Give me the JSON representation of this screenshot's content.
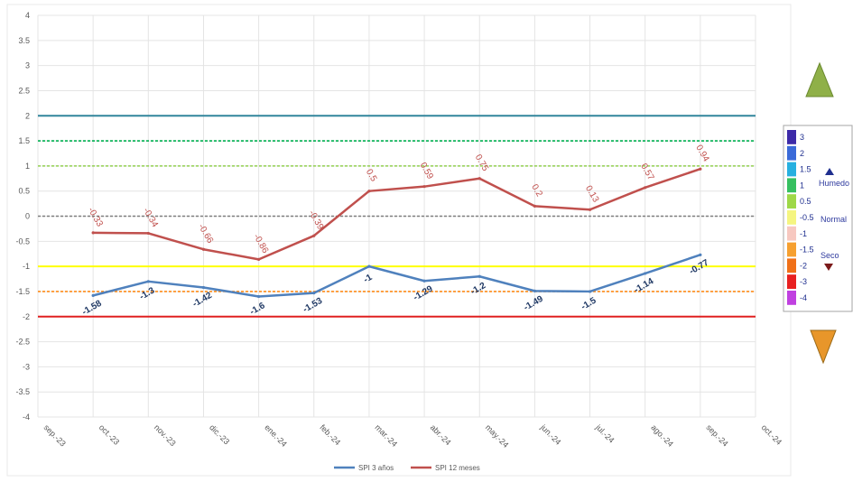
{
  "chart_data": {
    "type": "line",
    "x": [
      "sep.-23",
      "oct.-23",
      "nov.-23",
      "dic.-23",
      "ene.-24",
      "feb.-24",
      "mar.-24",
      "abr.-24",
      "may.-24",
      "jun.-24",
      "jul.-24",
      "ago.-24",
      "sep.-24",
      "oct.-24"
    ],
    "ylim": [
      -4,
      4
    ],
    "yticks": [
      4,
      3.5,
      3,
      2.5,
      2,
      1.5,
      1,
      0.5,
      0,
      -0.5,
      -1,
      -1.5,
      -2,
      -2.5,
      -3,
      -3.5,
      -4
    ],
    "grid": true,
    "legend": "bottom",
    "series": [
      {
        "name": "SPI 3 años",
        "color": "#4f81bd",
        "values": [
          null,
          -1.58,
          -1.3,
          -1.42,
          -1.6,
          -1.53,
          -1,
          -1.29,
          -1.2,
          -1.49,
          -1.5,
          -1.14,
          -0.77,
          null
        ],
        "labels": [
          "",
          "-1.58",
          "-1.3",
          "-1.42",
          "-1.6",
          "-1.53",
          "-1",
          "-1.29",
          "-1.2",
          "-1.49",
          "-1.5",
          "-1.14",
          "-0.77",
          ""
        ]
      },
      {
        "name": "SPI 12 meses",
        "color": "#c0504d",
        "values": [
          null,
          -0.33,
          -0.34,
          -0.66,
          -0.86,
          -0.39,
          0.5,
          0.59,
          0.75,
          0.2,
          0.13,
          0.57,
          0.94,
          null
        ],
        "labels": [
          "",
          "-0.33",
          "-0.34",
          "-0.66",
          "-0.86",
          "-0.39",
          "0.5",
          "0.59",
          "0.75",
          "0.2",
          "0.13",
          "0.57",
          "0.94",
          ""
        ]
      }
    ],
    "reference_lines": [
      {
        "y": 2,
        "color": "#31859c",
        "dash": false
      },
      {
        "y": 1.5,
        "color": "#00b050",
        "dash": true
      },
      {
        "y": 1,
        "color": "#92d050",
        "dash": true
      },
      {
        "y": 0,
        "color": "#7f7f7f",
        "dash": true
      },
      {
        "y": -1,
        "color": "#ffff00",
        "dash": false
      },
      {
        "y": -1.5,
        "color": "#ff8c1a",
        "dash": true
      },
      {
        "y": -2,
        "color": "#e02020",
        "dash": false
      }
    ]
  },
  "scale_legend": {
    "bands": [
      {
        "label": "3",
        "color": "#3d2aa8"
      },
      {
        "label": "2",
        "color": "#3a6ad8"
      },
      {
        "label": "1.5",
        "color": "#26b0e0"
      },
      {
        "label": "1",
        "color": "#36c060"
      },
      {
        "label": "0.5",
        "color": "#9ed848"
      },
      {
        "label": "-0.5",
        "color": "#f5f580"
      },
      {
        "label": "-1",
        "color": "#f7c8c0"
      },
      {
        "label": "-1.5",
        "color": "#f6a030"
      },
      {
        "label": "-2",
        "color": "#f07018"
      },
      {
        "label": "-3",
        "color": "#e82020"
      },
      {
        "label": "-4",
        "color": "#c040e0"
      }
    ],
    "humedo": "Humedo",
    "normal": "Normal",
    "seco": "Seco"
  }
}
